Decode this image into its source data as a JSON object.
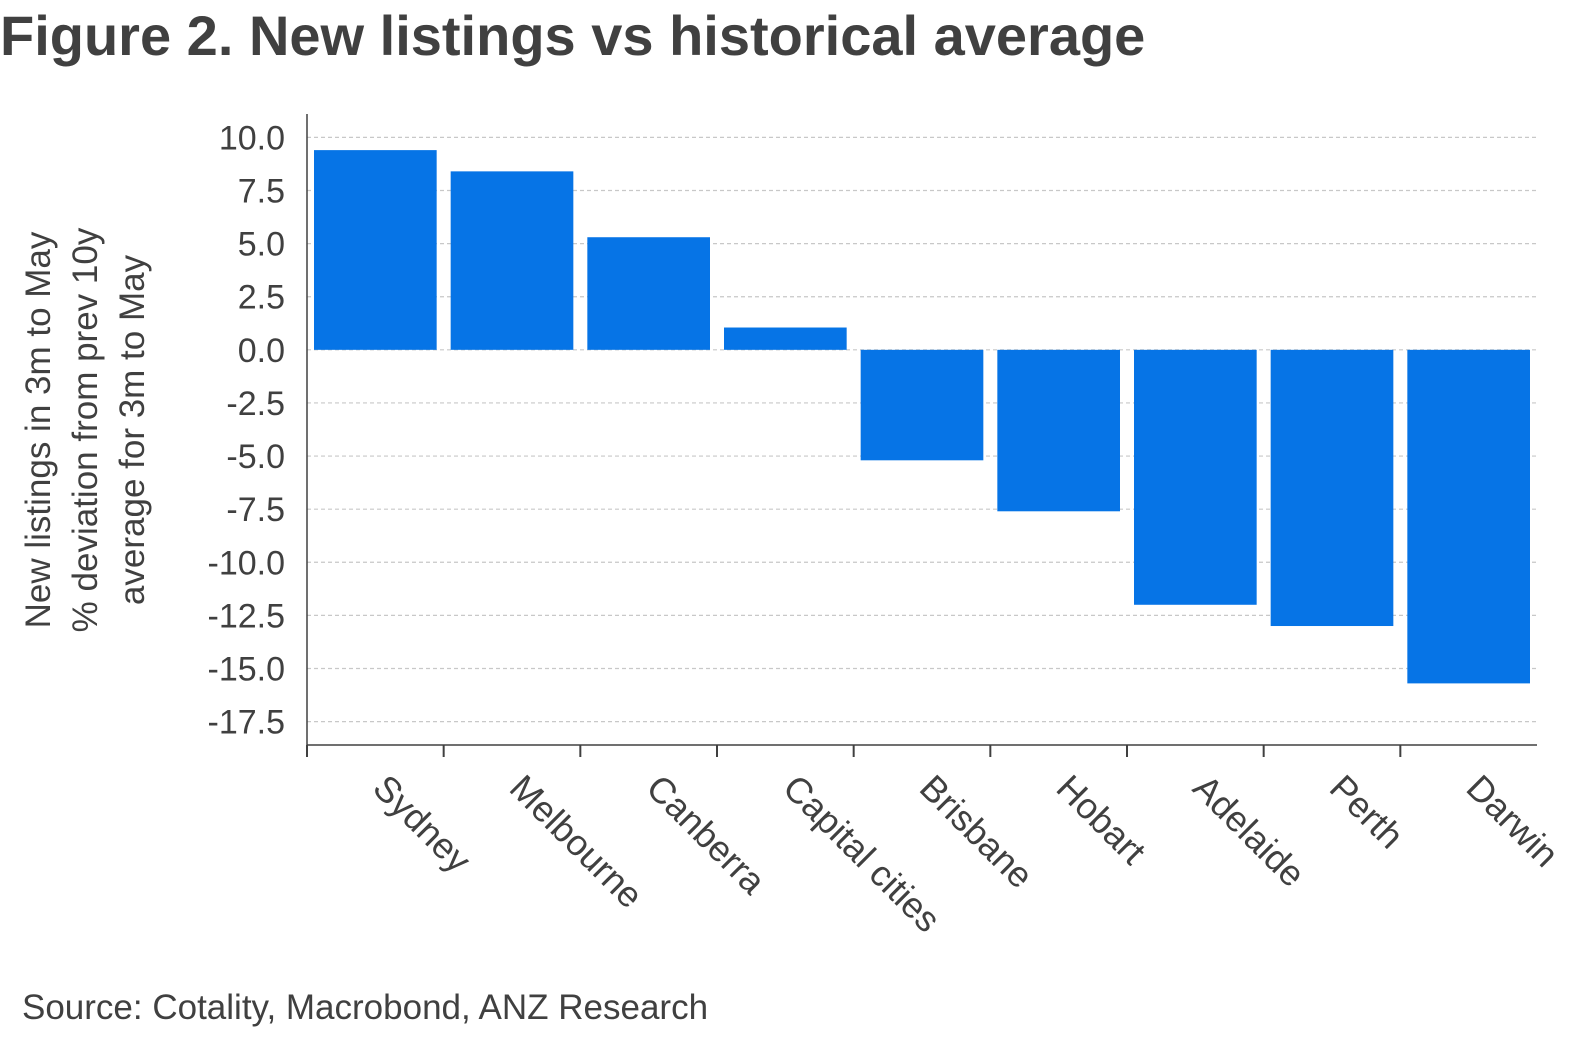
{
  "title": "Figure 2. New listings vs historical average",
  "source": "Source: Cotality, Macrobond, ANZ Research",
  "chart_data": {
    "type": "bar",
    "categories": [
      "Sydney",
      "Melbourne",
      "Canberra",
      "Capital cities",
      "Brisbane",
      "Hobart",
      "Adelaide",
      "Perth",
      "Darwin"
    ],
    "values": [
      9.4,
      8.4,
      5.3,
      1.05,
      -5.2,
      -7.6,
      -12.0,
      -13.0,
      -15.7
    ],
    "ylabel_lines": [
      "New listings in 3m to May",
      "% deviation from prev 10y",
      "average for 3m to May"
    ],
    "yticks": [
      10.0,
      7.5,
      5.0,
      2.5,
      0.0,
      -2.5,
      -5.0,
      -7.5,
      -10.0,
      -12.5,
      -15.0,
      -17.5
    ],
    "ytick_labels": [
      "10.0",
      "7.5",
      "5.0",
      "2.5",
      "0.0",
      "-2.5",
      "-5.0",
      "-7.5",
      "-10.0",
      "-12.5",
      "-15.0",
      "-17.5"
    ],
    "ylim": [
      -18.6,
      11.1
    ],
    "grid": true,
    "bar_color": "#0674E6",
    "grid_color": "#c8c8c8",
    "axis_color": "#404040"
  }
}
